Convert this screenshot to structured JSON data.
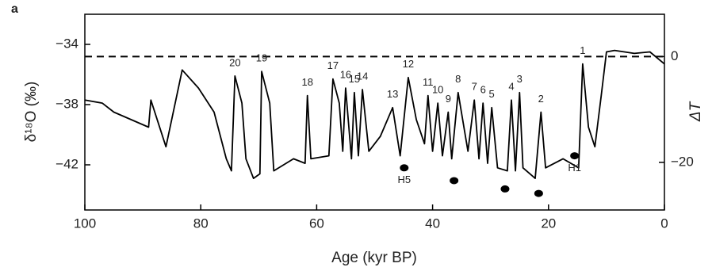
{
  "chart_data": {
    "type": "line",
    "panel_label": "a",
    "x_label": "Age (kyr BP)",
    "y_label": "δ¹⁸O (‰)",
    "y2_label": "ΔT",
    "xlim": [
      100,
      0
    ],
    "xticks": [
      100,
      80,
      60,
      40,
      20,
      0
    ],
    "ylim": [
      -45,
      -32
    ],
    "yticks": [
      {
        "value": -34,
        "label": "−34"
      },
      {
        "value": -38,
        "label": "−38"
      },
      {
        "value": -42,
        "label": "−42"
      }
    ],
    "y2lim": [
      -29,
      8
    ],
    "y2ticks": [
      0,
      {
        "value": -20,
        "label": "−20"
      }
    ],
    "reference_y2": 0,
    "color": "#000000",
    "x": [
      100,
      97,
      95,
      92,
      89,
      88.6,
      86,
      83.2,
      80.4,
      77.7,
      75.6,
      74.7,
      74.1,
      72.9,
      72.2,
      70.9,
      69.8,
      69.5,
      68.1,
      67.4,
      64,
      62,
      61.6,
      61,
      57.9,
      57.2,
      56.1,
      55.5,
      55,
      54,
      53.5,
      52.8,
      52.1,
      51,
      49,
      46.9,
      45.6,
      44.2,
      42.8,
      41.4,
      40.8,
      40,
      39.1,
      38.3,
      37.3,
      36.7,
      35.6,
      33.9,
      32.8,
      32,
      31.3,
      30.5,
      29.8,
      28.8,
      27.1,
      26.4,
      25.7,
      25,
      24.4,
      22.3,
      21.3,
      20.5,
      17.5,
      14.8,
      14.1,
      13.1,
      12,
      10.9,
      10,
      8.6,
      5.2,
      2.5,
      0
    ],
    "values": [
      -37.7,
      -37.9,
      -38.5,
      -39.0,
      -39.5,
      -37.7,
      -40.8,
      -35.7,
      -36.9,
      -38.5,
      -41.6,
      -42.4,
      -36.1,
      -37.9,
      -41.6,
      -42.9,
      -42.6,
      -35.8,
      -37.9,
      -42.4,
      -41.6,
      -41.9,
      -37.4,
      -41.6,
      -41.4,
      -36.3,
      -37.9,
      -41.1,
      -36.9,
      -41.6,
      -37.2,
      -41.4,
      -37.0,
      -41.1,
      -40.1,
      -38.2,
      -41.4,
      -36.2,
      -39.0,
      -40.6,
      -37.4,
      -41.1,
      -37.9,
      -41.4,
      -38.5,
      -41.6,
      -37.2,
      -41.1,
      -37.7,
      -41.6,
      -37.9,
      -41.9,
      -38.2,
      -42.2,
      -42.4,
      -37.7,
      -42.4,
      -37.2,
      -42.2,
      -42.9,
      -38.5,
      -42.2,
      -41.6,
      -42.2,
      -35.3,
      -39.5,
      -40.8,
      -37.4,
      -34.5,
      -34.4,
      -34.6,
      -34.5,
      -35.3
    ],
    "events": [
      {
        "label": "1",
        "age": 14.1
      },
      {
        "label": "2",
        "age": 21.3
      },
      {
        "label": "3",
        "age": 25
      },
      {
        "label": "4",
        "age": 26.4
      },
      {
        "label": "5",
        "age": 29.8
      },
      {
        "label": "6",
        "age": 31.3
      },
      {
        "label": "7",
        "age": 32.8
      },
      {
        "label": "8",
        "age": 35.6
      },
      {
        "label": "9",
        "age": 37.3
      },
      {
        "label": "10",
        "age": 39.1
      },
      {
        "label": "11",
        "age": 40.8
      },
      {
        "label": "12",
        "age": 44.2
      },
      {
        "label": "13",
        "age": 46.9
      },
      {
        "label": "14",
        "age": 52.1
      },
      {
        "label": "15",
        "age": 53.5
      },
      {
        "label": "16",
        "age": 55
      },
      {
        "label": "17",
        "age": 57.2
      },
      {
        "label": "18",
        "age": 61.6
      },
      {
        "label": "19",
        "age": 69.5
      },
      {
        "label": "20",
        "age": 74.1
      }
    ],
    "heinrich": [
      {
        "age": 44.9,
        "value": -42.2,
        "label": "H5"
      },
      {
        "age": 36.3,
        "value": -43.05
      },
      {
        "age": 27.5,
        "value": -43.6
      },
      {
        "age": 21.7,
        "value": -43.9
      },
      {
        "age": 15.5,
        "value": -41.4,
        "label": "H1"
      }
    ]
  }
}
